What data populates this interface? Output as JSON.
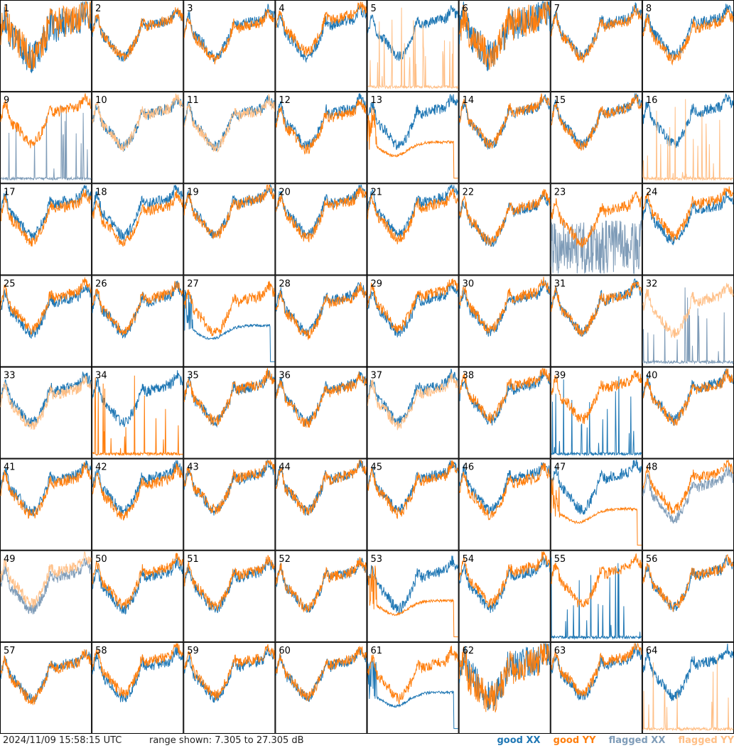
{
  "footer": {
    "timestamp": "2024/11/09 15:58:15 UTC",
    "range_text": "range shown: 7.305 to 27.305 dB"
  },
  "legend": {
    "good_xx": "good XX",
    "good_yy": "good YY",
    "flagged_xx": "flagged XX",
    "flagged_yy": "flagged YY"
  },
  "colors": {
    "good_xx": "#1f77b4",
    "good_yy": "#ff7f0e",
    "flagged_xx": "#7f9cb8",
    "flagged_yy": "#ffbf86"
  },
  "chart_data": {
    "type": "line",
    "grid": {
      "rows": 8,
      "cols": 8
    },
    "ylim": [
      7.305,
      27.305
    ],
    "panels": [
      {
        "id": "1",
        "xx": "good",
        "yy": "good",
        "pattern": "wild"
      },
      {
        "id": "2",
        "xx": "good",
        "yy": "good",
        "pattern": "normal"
      },
      {
        "id": "3",
        "xx": "good",
        "yy": "good",
        "pattern": "normal"
      },
      {
        "id": "4",
        "xx": "good",
        "yy": "good",
        "pattern": "normal"
      },
      {
        "id": "5",
        "xx": "good",
        "yy": "flagged",
        "pattern": "spiky-yy"
      },
      {
        "id": "6",
        "xx": "good",
        "yy": "good",
        "pattern": "wild"
      },
      {
        "id": "7",
        "xx": "good",
        "yy": "good",
        "pattern": "normal"
      },
      {
        "id": "8",
        "xx": "good",
        "yy": "good",
        "pattern": "normal"
      },
      {
        "id": "9",
        "xx": "flagged",
        "yy": "good",
        "pattern": "spiky-xx"
      },
      {
        "id": "10",
        "xx": "good",
        "yy": "flagged",
        "pattern": "normal"
      },
      {
        "id": "11",
        "xx": "good",
        "yy": "flagged",
        "pattern": "normal"
      },
      {
        "id": "12",
        "xx": "good",
        "yy": "good",
        "pattern": "normal"
      },
      {
        "id": "13",
        "xx": "good",
        "yy": "good",
        "pattern": "decay-yy"
      },
      {
        "id": "14",
        "xx": "good",
        "yy": "good",
        "pattern": "normal"
      },
      {
        "id": "15",
        "xx": "good",
        "yy": "good",
        "pattern": "normal"
      },
      {
        "id": "16",
        "xx": "good",
        "yy": "flagged",
        "pattern": "spiky-yy"
      },
      {
        "id": "17",
        "xx": "good",
        "yy": "good",
        "pattern": "normal"
      },
      {
        "id": "18",
        "xx": "good",
        "yy": "good",
        "pattern": "normal"
      },
      {
        "id": "19",
        "xx": "good",
        "yy": "good",
        "pattern": "normal"
      },
      {
        "id": "20",
        "xx": "good",
        "yy": "good",
        "pattern": "normal"
      },
      {
        "id": "21",
        "xx": "good",
        "yy": "good",
        "pattern": "normal"
      },
      {
        "id": "22",
        "xx": "good",
        "yy": "good",
        "pattern": "normal"
      },
      {
        "id": "23",
        "xx": "flagged",
        "yy": "good",
        "pattern": "noisy-xx"
      },
      {
        "id": "24",
        "xx": "good",
        "yy": "good",
        "pattern": "normal"
      },
      {
        "id": "25",
        "xx": "good",
        "yy": "good",
        "pattern": "spike-single"
      },
      {
        "id": "26",
        "xx": "good",
        "yy": "good",
        "pattern": "normal"
      },
      {
        "id": "27",
        "xx": "good",
        "yy": "good",
        "pattern": "decay-xx"
      },
      {
        "id": "28",
        "xx": "good",
        "yy": "good",
        "pattern": "normal"
      },
      {
        "id": "29",
        "xx": "good",
        "yy": "good",
        "pattern": "normal"
      },
      {
        "id": "30",
        "xx": "good",
        "yy": "good",
        "pattern": "normal"
      },
      {
        "id": "31",
        "xx": "good",
        "yy": "good",
        "pattern": "normal"
      },
      {
        "id": "32",
        "xx": "flagged",
        "yy": "flagged",
        "pattern": "spiky-xx"
      },
      {
        "id": "33",
        "xx": "good",
        "yy": "flagged",
        "pattern": "normal"
      },
      {
        "id": "34",
        "xx": "good",
        "yy": "good",
        "pattern": "spiky-yy"
      },
      {
        "id": "35",
        "xx": "good",
        "yy": "good",
        "pattern": "normal"
      },
      {
        "id": "36",
        "xx": "good",
        "yy": "good",
        "pattern": "normal"
      },
      {
        "id": "37",
        "xx": "good",
        "yy": "flagged",
        "pattern": "normal"
      },
      {
        "id": "38",
        "xx": "good",
        "yy": "good",
        "pattern": "normal"
      },
      {
        "id": "39",
        "xx": "good",
        "yy": "good",
        "pattern": "spiky-xx"
      },
      {
        "id": "40",
        "xx": "good",
        "yy": "good",
        "pattern": "normal"
      },
      {
        "id": "41",
        "xx": "good",
        "yy": "good",
        "pattern": "normal"
      },
      {
        "id": "42",
        "xx": "good",
        "yy": "good",
        "pattern": "normal"
      },
      {
        "id": "43",
        "xx": "good",
        "yy": "good",
        "pattern": "normal"
      },
      {
        "id": "44",
        "xx": "good",
        "yy": "good",
        "pattern": "normal"
      },
      {
        "id": "45",
        "xx": "good",
        "yy": "good",
        "pattern": "normal"
      },
      {
        "id": "46",
        "xx": "good",
        "yy": "good",
        "pattern": "normal"
      },
      {
        "id": "47",
        "xx": "good",
        "yy": "good",
        "pattern": "decay-yy"
      },
      {
        "id": "48",
        "xx": "flagged",
        "yy": "good",
        "pattern": "normal"
      },
      {
        "id": "49",
        "xx": "flagged",
        "yy": "flagged",
        "pattern": "normal"
      },
      {
        "id": "50",
        "xx": "good",
        "yy": "good",
        "pattern": "normal"
      },
      {
        "id": "51",
        "xx": "good",
        "yy": "good",
        "pattern": "normal"
      },
      {
        "id": "52",
        "xx": "good",
        "yy": "good",
        "pattern": "normal"
      },
      {
        "id": "53",
        "xx": "good",
        "yy": "good",
        "pattern": "decay-yy"
      },
      {
        "id": "54",
        "xx": "good",
        "yy": "good",
        "pattern": "normal"
      },
      {
        "id": "55",
        "xx": "good",
        "yy": "good",
        "pattern": "spiky-xx"
      },
      {
        "id": "56",
        "xx": "good",
        "yy": "good",
        "pattern": "normal"
      },
      {
        "id": "57",
        "xx": "good",
        "yy": "good",
        "pattern": "normal"
      },
      {
        "id": "58",
        "xx": "good",
        "yy": "good",
        "pattern": "normal"
      },
      {
        "id": "59",
        "xx": "good",
        "yy": "good",
        "pattern": "normal"
      },
      {
        "id": "60",
        "xx": "good",
        "yy": "good",
        "pattern": "normal"
      },
      {
        "id": "61",
        "xx": "good",
        "yy": "good",
        "pattern": "decay-xx"
      },
      {
        "id": "62",
        "xx": "good",
        "yy": "good",
        "pattern": "wild"
      },
      {
        "id": "63",
        "xx": "good",
        "yy": "good",
        "pattern": "normal"
      },
      {
        "id": "64",
        "xx": "good",
        "yy": "flagged",
        "pattern": "spiky-yy"
      }
    ]
  }
}
